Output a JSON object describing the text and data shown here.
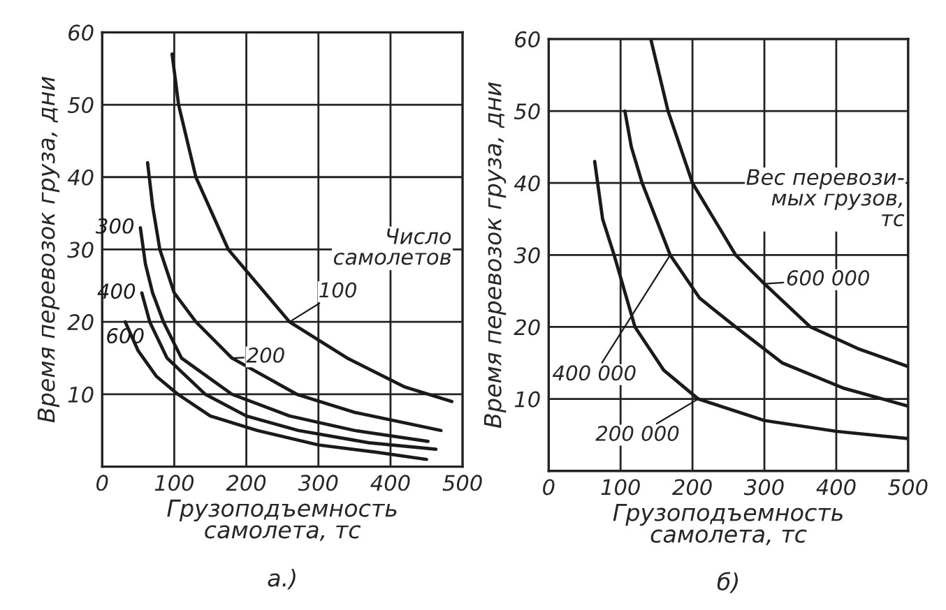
{
  "chart_data": [
    {
      "type": "line",
      "xlabel": "Грузоподъемность\nсамолета, тс",
      "ylabel": "Время перевозок груза, дни",
      "legend_title": "Число\nсамолетов",
      "annotations": [
        "а.)"
      ],
      "xlim": [
        0,
        500
      ],
      "ylim": [
        0,
        60
      ],
      "xticks": [
        0,
        100,
        200,
        300,
        400,
        500
      ],
      "yticks": [
        {
          "value": 0,
          "label": null
        },
        10,
        20,
        30,
        40,
        50,
        60
      ],
      "grid": true,
      "marker": "none",
      "line_style": "solid",
      "series": [
        {
          "name": "100",
          "color": "#1a1a1a",
          "x": [
            97,
            106,
            130,
            175,
            260,
            340,
            420,
            485
          ],
          "values": [
            57,
            50,
            40,
            30,
            20,
            15,
            11,
            9
          ]
        },
        {
          "name": "200",
          "color": "#1a1a1a",
          "x": [
            63,
            70,
            80,
            100,
            130,
            180,
            270,
            350,
            470
          ],
          "values": [
            42,
            36,
            30,
            24,
            20,
            15,
            10,
            7.5,
            5
          ]
        },
        {
          "name": "300",
          "color": "#1a1a1a",
          "x": [
            53,
            60,
            70,
            85,
            110,
            180,
            260,
            350,
            452
          ],
          "values": [
            33,
            28,
            24,
            20,
            15,
            10,
            7,
            5,
            3.5
          ]
        },
        {
          "name": "400",
          "color": "#1a1a1a",
          "x": [
            55,
            66,
            90,
            143,
            200,
            272,
            370,
            463
          ],
          "values": [
            24,
            20,
            15,
            10,
            7,
            5,
            3.3,
            2.4
          ]
        },
        {
          "name": "600",
          "color": "#1a1a1a",
          "x": [
            32,
            50,
            75,
            105,
            150,
            215,
            300,
            380,
            450
          ],
          "values": [
            20,
            16,
            12.5,
            10,
            7,
            5,
            3,
            2,
            1
          ]
        }
      ]
    },
    {
      "type": "line",
      "xlabel": "Грузоподъемность\nсамолета, тс",
      "ylabel": "Время перевозок груза, дни",
      "legend_title": "Вес перевози-\nмых грузов,\nтс",
      "annotations": [
        "б)"
      ],
      "xlim": [
        0,
        500
      ],
      "ylim": [
        0,
        60
      ],
      "xticks": [
        0,
        100,
        200,
        300,
        400,
        500
      ],
      "yticks": [
        {
          "value": 0,
          "label": null
        },
        10,
        20,
        30,
        40,
        50,
        60
      ],
      "grid": true,
      "marker": "none",
      "line_style": "solid",
      "series": [
        {
          "name": "600 000",
          "color": "#1a1a1a",
          "x": [
            142,
            166,
            200,
            260,
            300,
            364,
            430,
            500
          ],
          "values": [
            60,
            50,
            40,
            30,
            26,
            20,
            17,
            14.5
          ]
        },
        {
          "name": "400 000",
          "color": "#1a1a1a",
          "x": [
            106,
            115,
            130,
            169,
            210,
            260,
            325,
            410,
            500
          ],
          "values": [
            50,
            45,
            40,
            30,
            24,
            20,
            15,
            11.5,
            9
          ]
        },
        {
          "name": "200 000",
          "color": "#1a1a1a",
          "x": [
            64,
            75,
            91,
            120,
            160,
            208,
            300,
            400,
            500
          ],
          "values": [
            43,
            35,
            30,
            20,
            14,
            10,
            7,
            5.5,
            4.5
          ]
        }
      ]
    }
  ]
}
